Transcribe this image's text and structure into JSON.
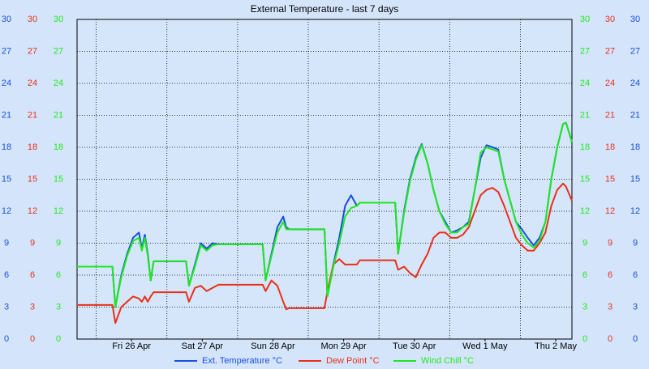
{
  "chart_data": {
    "type": "line",
    "title": "External Temperature - last 7 days",
    "xlim": [
      0,
      168
    ],
    "xticks": [
      {
        "value": 18.5,
        "label": "Fri 26 Apr"
      },
      {
        "value": 42.5,
        "label": "Sat 27 Apr"
      },
      {
        "value": 66.5,
        "label": "Sun 28 Apr"
      },
      {
        "value": 90.5,
        "label": "Mon 29 Apr"
      },
      {
        "value": 114.5,
        "label": "Tue 30 Apr"
      },
      {
        "value": 138.5,
        "label": "Wed 1 May"
      },
      {
        "value": 162.5,
        "label": "Thu 2 May"
      }
    ],
    "xgrid_lines": [
      6.5,
      30.5,
      54.5,
      78.5,
      102.5,
      126.5,
      150.5
    ],
    "ylim": [
      0,
      30
    ],
    "yticks": [
      0,
      3,
      6,
      9,
      12,
      15,
      18,
      21,
      24,
      27,
      30
    ],
    "grid": true,
    "x": [
      0,
      12,
      13,
      15,
      17,
      19,
      21,
      22,
      23,
      24,
      25,
      26,
      37,
      38,
      40,
      42,
      44,
      46,
      48,
      63,
      64,
      66,
      68,
      70,
      71,
      72,
      84,
      85,
      87,
      89,
      91,
      93,
      95,
      96,
      108,
      109,
      111,
      113,
      115,
      117,
      119,
      121,
      123,
      125,
      127,
      129,
      131,
      133,
      135,
      137,
      139,
      141,
      143,
      145,
      147,
      149,
      151,
      153,
      155,
      157,
      159,
      161,
      163,
      165,
      166,
      168
    ],
    "series": [
      {
        "name": "Ext. Temperature °C",
        "color": "#1a4fe0",
        "values": [
          6.8,
          6.8,
          3,
          6,
          8,
          9.5,
          10,
          8.5,
          9.8,
          8,
          5.5,
          7.3,
          7.3,
          5,
          7,
          9,
          8.5,
          9,
          8.9,
          8.9,
          5.5,
          8,
          10.5,
          11.5,
          10.5,
          10.3,
          10.3,
          4,
          7,
          9.5,
          12.5,
          13.5,
          12.5,
          12.8,
          12.8,
          8,
          12,
          15,
          17,
          18.3,
          16.5,
          14,
          12,
          11,
          10,
          10.2,
          10.5,
          11,
          14,
          17,
          18.2,
          18,
          17.8,
          15,
          13,
          11,
          10.3,
          9.5,
          8.8,
          9.5,
          11,
          15,
          18,
          20.2,
          20.3,
          18.5
        ]
      },
      {
        "name": "Dew Point °C",
        "color": "#e8301a",
        "values": [
          3.2,
          3.2,
          1.5,
          3,
          3.5,
          4,
          3.8,
          3.5,
          4,
          3.5,
          4,
          4.4,
          4.4,
          3.5,
          4.8,
          5,
          4.5,
          4.8,
          5.1,
          5.1,
          4.5,
          5.5,
          5,
          3.5,
          2.8,
          2.9,
          2.9,
          4.5,
          7,
          7.5,
          7,
          7,
          7,
          7.4,
          7.4,
          6.5,
          6.8,
          6.2,
          5.8,
          7,
          8,
          9.5,
          10,
          10,
          9.5,
          9.5,
          9.8,
          10.5,
          12,
          13.5,
          14,
          14.2,
          13.8,
          12.5,
          11,
          9.5,
          8.8,
          8.3,
          8.3,
          9,
          10,
          12.5,
          14,
          14.6,
          14.3,
          13
        ]
      },
      {
        "name": "Wind Chill °C",
        "color": "#1ee81e",
        "values": [
          6.8,
          6.8,
          3,
          5.8,
          7.8,
          9.2,
          9.5,
          8.3,
          9.5,
          7.8,
          5.5,
          7.3,
          7.3,
          5,
          6.8,
          8.8,
          8.3,
          8.8,
          8.9,
          8.9,
          5.5,
          7.8,
          10,
          11,
          10.3,
          10.3,
          10.3,
          4,
          6.8,
          9,
          11.5,
          12.3,
          12.5,
          12.8,
          12.8,
          8,
          11.8,
          14.8,
          16.8,
          18.2,
          16.5,
          14,
          12,
          10.8,
          10,
          10,
          10.5,
          10.8,
          14,
          17.5,
          18,
          17.8,
          17.6,
          15,
          13,
          11,
          9.8,
          9,
          8.6,
          9.2,
          11,
          15,
          18,
          20.2,
          20.3,
          18.5
        ]
      }
    ]
  }
}
